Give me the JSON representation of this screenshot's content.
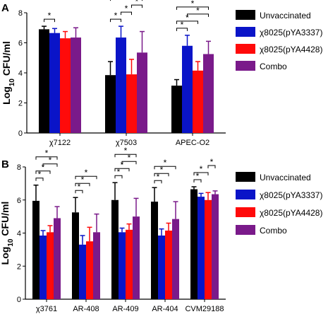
{
  "figure": {
    "legend": [
      "Unvaccinated",
      "χ8025(pYA3337)",
      "χ8025(pYA4428)",
      "Combo"
    ],
    "colors": [
      "#000000",
      "#0a14c8",
      "#ff0a0a",
      "#7a1a8a"
    ]
  },
  "chart_data": [
    {
      "type": "bar",
      "panel_label": "A",
      "ylabel_main": "Log",
      "ylabel_sub": "10",
      "ylabel_tail": " CFU/ml",
      "ylim": [
        0,
        8
      ],
      "yticks": [
        "0",
        "2",
        "4",
        "6",
        "8"
      ],
      "categories": [
        "χ7122",
        "χ7503",
        "APEC-O2"
      ],
      "series": [
        {
          "name": "Unvaccinated",
          "values": [
            6.9,
            3.85,
            3.15
          ],
          "errors": [
            0.2,
            0.9,
            0.4
          ]
        },
        {
          "name": "χ8025(pYA3337)",
          "values": [
            6.65,
            6.35,
            5.8
          ],
          "errors": [
            0.3,
            0.75,
            0.7
          ]
        },
        {
          "name": "χ8025(pYA4428)",
          "values": [
            6.3,
            3.9,
            4.15
          ],
          "errors": [
            0.45,
            1.0,
            0.6
          ]
        },
        {
          "name": "Combo",
          "values": [
            6.35,
            5.35,
            5.25
          ],
          "errors": [
            0.65,
            1.4,
            0.85
          ]
        }
      ],
      "significance": [
        {
          "group": 0,
          "from": 0,
          "to": 1,
          "level": 0,
          "label": "*"
        },
        {
          "group": 1,
          "from": 0,
          "to": 1,
          "level": 0,
          "label": "*"
        },
        {
          "group": 1,
          "from": 1,
          "to": 2,
          "level": 1,
          "label": "*"
        },
        {
          "group": 1,
          "from": 2,
          "to": 3,
          "level": 2,
          "label": "*"
        },
        {
          "group": 1,
          "from": 0,
          "to": 3,
          "level": 3,
          "label": "*"
        },
        {
          "group": 2,
          "from": 0,
          "to": 1,
          "level": 0,
          "label": "*"
        },
        {
          "group": 2,
          "from": 0,
          "to": 2,
          "level": 1,
          "label": "*"
        },
        {
          "group": 2,
          "from": 1,
          "to": 3,
          "level": 2,
          "label": "*"
        },
        {
          "group": 2,
          "from": 0,
          "to": 3,
          "level": 3,
          "label": "*"
        }
      ]
    },
    {
      "type": "bar",
      "panel_label": "B",
      "ylabel_main": "Log",
      "ylabel_sub": "10",
      "ylabel_tail": " CFU/ml",
      "ylim": [
        0,
        8
      ],
      "yticks": [
        "0",
        "2",
        "4",
        "6",
        "8"
      ],
      "categories": [
        "χ3761",
        "AR-408",
        "AR-409",
        "AR-404",
        "CVM29188"
      ],
      "series": [
        {
          "name": "Unvaccinated",
          "values": [
            5.95,
            5.25,
            6.0,
            5.9,
            6.65
          ],
          "errors": [
            0.95,
            0.9,
            1.05,
            0.85,
            0.15
          ]
        },
        {
          "name": "χ8025(pYA3337)",
          "values": [
            3.85,
            3.3,
            4.05,
            3.85,
            6.2
          ],
          "errors": [
            0.3,
            0.55,
            0.25,
            0.4,
            0.2
          ]
        },
        {
          "name": "χ8025(pYA4428)",
          "values": [
            4.05,
            3.5,
            4.2,
            4.15,
            6.0
          ],
          "errors": [
            0.4,
            0.85,
            0.35,
            0.45,
            0.45
          ]
        },
        {
          "name": "Combo",
          "values": [
            4.9,
            4.05,
            5.0,
            4.85,
            6.35
          ],
          "errors": [
            0.7,
            1.1,
            1.1,
            1.05,
            0.2
          ]
        }
      ],
      "significance": [
        {
          "group": 0,
          "from": 0,
          "to": 1,
          "level": 0,
          "label": "*"
        },
        {
          "group": 0,
          "from": 0,
          "to": 2,
          "level": 1,
          "label": "*"
        },
        {
          "group": 0,
          "from": 1,
          "to": 3,
          "level": 2,
          "label": "*"
        },
        {
          "group": 0,
          "from": 0,
          "to": 3,
          "level": 3,
          "label": "*"
        },
        {
          "group": 1,
          "from": 0,
          "to": 1,
          "level": 0,
          "label": "*"
        },
        {
          "group": 1,
          "from": 0,
          "to": 2,
          "level": 1,
          "label": "*"
        },
        {
          "group": 1,
          "from": 0,
          "to": 3,
          "level": 2,
          "label": "*"
        },
        {
          "group": 2,
          "from": 0,
          "to": 1,
          "level": 0,
          "label": "*"
        },
        {
          "group": 2,
          "from": 0,
          "to": 2,
          "level": 1,
          "label": "*"
        },
        {
          "group": 2,
          "from": 1,
          "to": 3,
          "level": 2,
          "label": "*"
        },
        {
          "group": 2,
          "from": 0,
          "to": 3,
          "level": 3,
          "label": "*"
        },
        {
          "group": 3,
          "from": 0,
          "to": 1,
          "level": 0,
          "label": "*"
        },
        {
          "group": 3,
          "from": 0,
          "to": 2,
          "level": 1,
          "label": "*"
        },
        {
          "group": 3,
          "from": 0,
          "to": 3,
          "level": 2,
          "label": "*"
        },
        {
          "group": 4,
          "from": 0,
          "to": 1,
          "level": 0,
          "label": "*"
        },
        {
          "group": 4,
          "from": 0,
          "to": 2,
          "level": 1,
          "label": "*"
        },
        {
          "group": 4,
          "from": 2,
          "to": 3,
          "level": 2,
          "label": "*"
        }
      ]
    }
  ]
}
